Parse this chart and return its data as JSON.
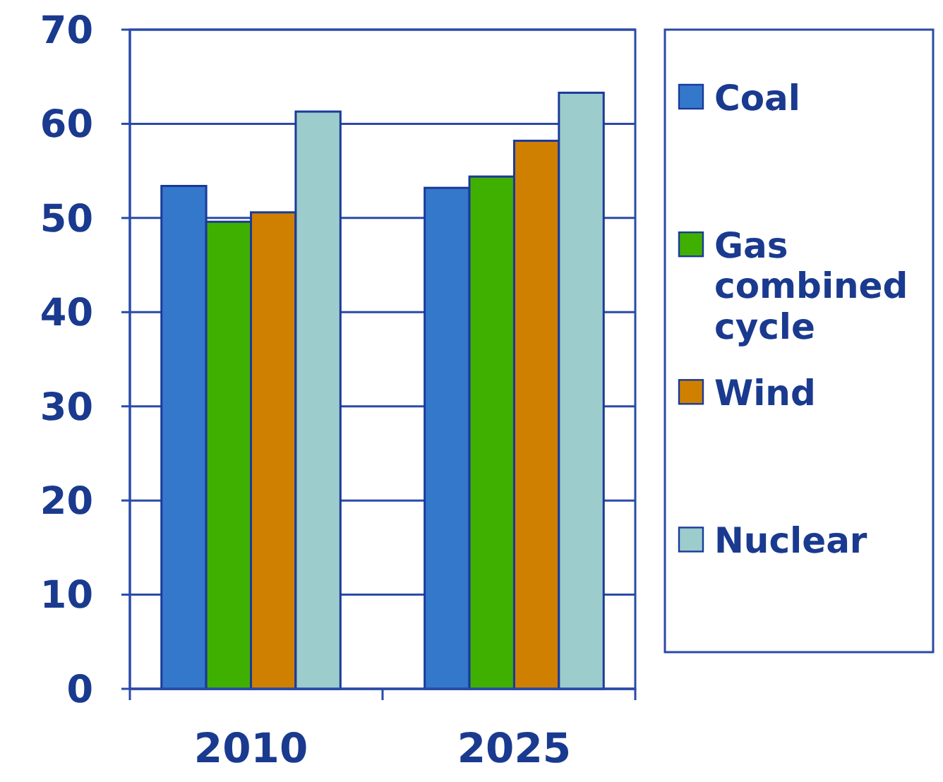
{
  "chart_data": {
    "type": "bar",
    "categories": [
      "2010",
      "2025"
    ],
    "series": [
      {
        "name": "Coal",
        "color": "#3478cc",
        "values": [
          53.4,
          53.2
        ]
      },
      {
        "name": "Gas combined cycle",
        "color": "#40b000",
        "values": [
          49.6,
          54.4
        ]
      },
      {
        "name": "Wind",
        "color": "#d08000",
        "values": [
          50.6,
          58.2
        ]
      },
      {
        "name": "Nuclear",
        "color": "#9ccccc",
        "values": [
          61.3,
          63.3
        ]
      }
    ],
    "ylim": [
      0,
      70
    ],
    "yticks": [
      0,
      10,
      20,
      30,
      40,
      50,
      60,
      70
    ],
    "grid": "y",
    "legend": "right"
  }
}
